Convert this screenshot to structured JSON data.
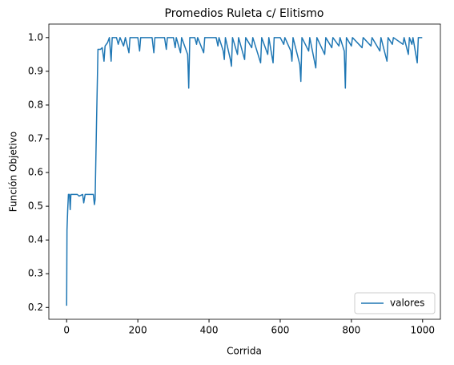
{
  "chart_data": {
    "type": "line",
    "title": "Promedios Ruleta c/ Elitismo",
    "xlabel": "Corrida",
    "ylabel": "Función Objetivo",
    "x": [
      0,
      1,
      3,
      5,
      8,
      10,
      12,
      30,
      35,
      45,
      48,
      52,
      75,
      78,
      80,
      84,
      88,
      95,
      100,
      105,
      108,
      115,
      120,
      125,
      128,
      140,
      145,
      150,
      160,
      165,
      175,
      178,
      200,
      205,
      208,
      240,
      245,
      248,
      275,
      280,
      283,
      300,
      305,
      308,
      320,
      323,
      340,
      343,
      346,
      360,
      365,
      368,
      385,
      388,
      420,
      425,
      428,
      440,
      443,
      446,
      460,
      463,
      466,
      480,
      483,
      500,
      503,
      520,
      523,
      545,
      548,
      565,
      568,
      580,
      583,
      600,
      610,
      613,
      630,
      633,
      636,
      655,
      658,
      661,
      680,
      683,
      700,
      703,
      725,
      728,
      745,
      748,
      765,
      768,
      780,
      783,
      786,
      800,
      803,
      830,
      833,
      855,
      858,
      880,
      883,
      900,
      903,
      915,
      918,
      945,
      948,
      960,
      963,
      970,
      973,
      985,
      988,
      999
    ],
    "series": [
      {
        "name": "valores",
        "color": "#1f77b4",
        "values": [
          0.205,
          0.43,
          0.49,
          0.535,
          0.535,
          0.49,
          0.535,
          0.535,
          0.53,
          0.535,
          0.51,
          0.535,
          0.535,
          0.505,
          0.52,
          0.75,
          0.965,
          0.965,
          0.97,
          0.93,
          0.975,
          0.985,
          1,
          0.93,
          1,
          1,
          0.98,
          1,
          0.975,
          1,
          0.955,
          1,
          1,
          0.96,
          1,
          1,
          0.955,
          1,
          1,
          0.965,
          1,
          1,
          0.97,
          1,
          0.955,
          1,
          0.95,
          0.85,
          1,
          1,
          0.98,
          1,
          0.955,
          1,
          1,
          0.975,
          1,
          0.96,
          0.935,
          1,
          0.935,
          0.915,
          1,
          0.95,
          1,
          0.935,
          1,
          0.97,
          1,
          0.925,
          1,
          0.95,
          1,
          0.925,
          1,
          1,
          0.98,
          1,
          0.96,
          0.93,
          1,
          0.92,
          0.87,
          1,
          0.96,
          1,
          0.91,
          1,
          0.95,
          1,
          0.97,
          1,
          0.975,
          1,
          0.96,
          0.85,
          1,
          0.975,
          1,
          0.97,
          1,
          0.975,
          1,
          0.96,
          1,
          0.93,
          1,
          0.98,
          1,
          0.98,
          1,
          0.95,
          1,
          0.98,
          1,
          0.925,
          1,
          1
        ]
      }
    ],
    "xlim": [
      -50,
      1050
    ],
    "xticks": [
      0,
      200,
      400,
      600,
      800,
      1000
    ],
    "ylim": [
      0.165,
      1.04
    ],
    "yticks": [
      0.2,
      0.3,
      0.4,
      0.5,
      0.6,
      0.7,
      0.8,
      0.9,
      {
        "value": 1,
        "label": "1.0"
      }
    ],
    "legend": "lower right"
  }
}
